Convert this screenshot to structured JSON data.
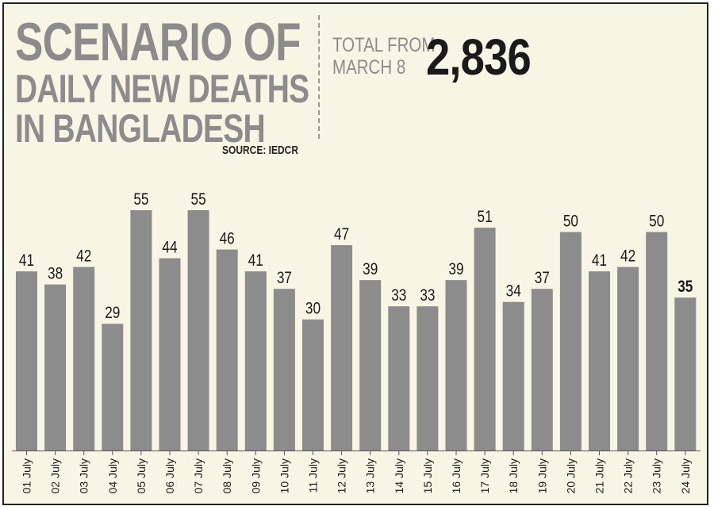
{
  "header": {
    "title_line1": "SCENARIO OF",
    "title_line2": "DAILY NEW DEATHS",
    "title_line3": "IN BANGLADESH",
    "source": "SOURCE: IEDCR",
    "total_label_line1": "TOTAL FROM",
    "total_label_line2": "MARCH 8",
    "total_value": "2,836"
  },
  "colors": {
    "background": "#f7f5e4",
    "bar": "#8c8c8c",
    "title": "#8c8c8c",
    "text": "#1a1a1a"
  },
  "chart_data": {
    "type": "bar",
    "title": "SCENARIO OF DAILY NEW DEATHS IN BANGLADESH",
    "xlabel": "",
    "ylabel": "",
    "categories": [
      "01 July",
      "02 July",
      "03 July",
      "04 July",
      "05 July",
      "06 July",
      "07 July",
      "08 July",
      "09 July",
      "10 July",
      "11 July",
      "12 July",
      "13 July",
      "14 July",
      "15 July",
      "16 July",
      "17 July",
      "18 July",
      "19 July",
      "20 July",
      "21 July",
      "22 July",
      "23 July",
      "24 July"
    ],
    "values": [
      41,
      38,
      42,
      29,
      55,
      44,
      55,
      46,
      41,
      37,
      30,
      47,
      39,
      33,
      33,
      39,
      51,
      34,
      37,
      50,
      41,
      42,
      50,
      35
    ],
    "highlight_last_label": true,
    "ylim": [
      0,
      55
    ],
    "grid": false,
    "legend": "none"
  }
}
